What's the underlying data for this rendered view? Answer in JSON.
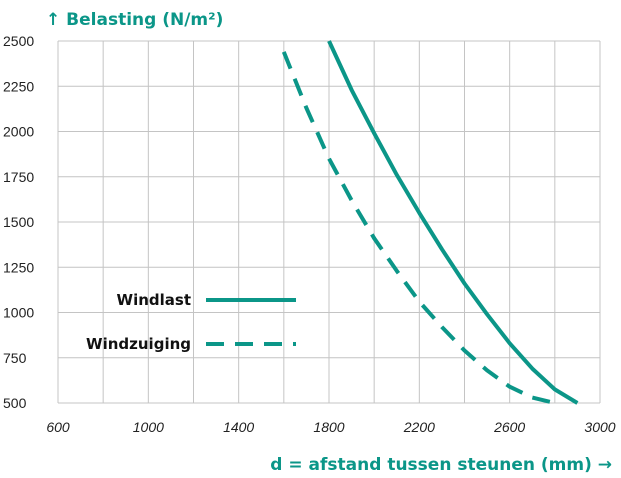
{
  "chart_data": {
    "type": "line",
    "ylabel": "↑ Belasting (N/m²)",
    "xlabel": "d = afstand tussen steunen (mm) →",
    "xlim": [
      600,
      3000
    ],
    "ylim": [
      500,
      2500
    ],
    "x_ticks": [
      "600",
      "1000",
      "1400",
      "1800",
      "2200",
      "2600",
      "3000"
    ],
    "y_ticks": [
      "500",
      "750",
      "1000",
      "1250",
      "1500",
      "1750",
      "2000",
      "2250",
      "2500"
    ],
    "grid": true,
    "legend_position": "bottom-left",
    "series": [
      {
        "name": "Windlast",
        "style": "solid",
        "color": "#0b9688",
        "points": [
          [
            1800,
            2500
          ],
          [
            1900,
            2230
          ],
          [
            2000,
            1990
          ],
          [
            2100,
            1760
          ],
          [
            2200,
            1550
          ],
          [
            2300,
            1350
          ],
          [
            2400,
            1160
          ],
          [
            2500,
            990
          ],
          [
            2600,
            830
          ],
          [
            2700,
            690
          ],
          [
            2800,
            575
          ],
          [
            2900,
            500
          ]
        ]
      },
      {
        "name": "Windzuiging",
        "style": "dashed",
        "color": "#0b9688",
        "points": [
          [
            1600,
            2440
          ],
          [
            1700,
            2130
          ],
          [
            1800,
            1850
          ],
          [
            1900,
            1620
          ],
          [
            2000,
            1410
          ],
          [
            2100,
            1230
          ],
          [
            2200,
            1060
          ],
          [
            2300,
            920
          ],
          [
            2400,
            790
          ],
          [
            2500,
            680
          ],
          [
            2600,
            590
          ],
          [
            2700,
            530
          ],
          [
            2800,
            500
          ]
        ]
      }
    ]
  }
}
